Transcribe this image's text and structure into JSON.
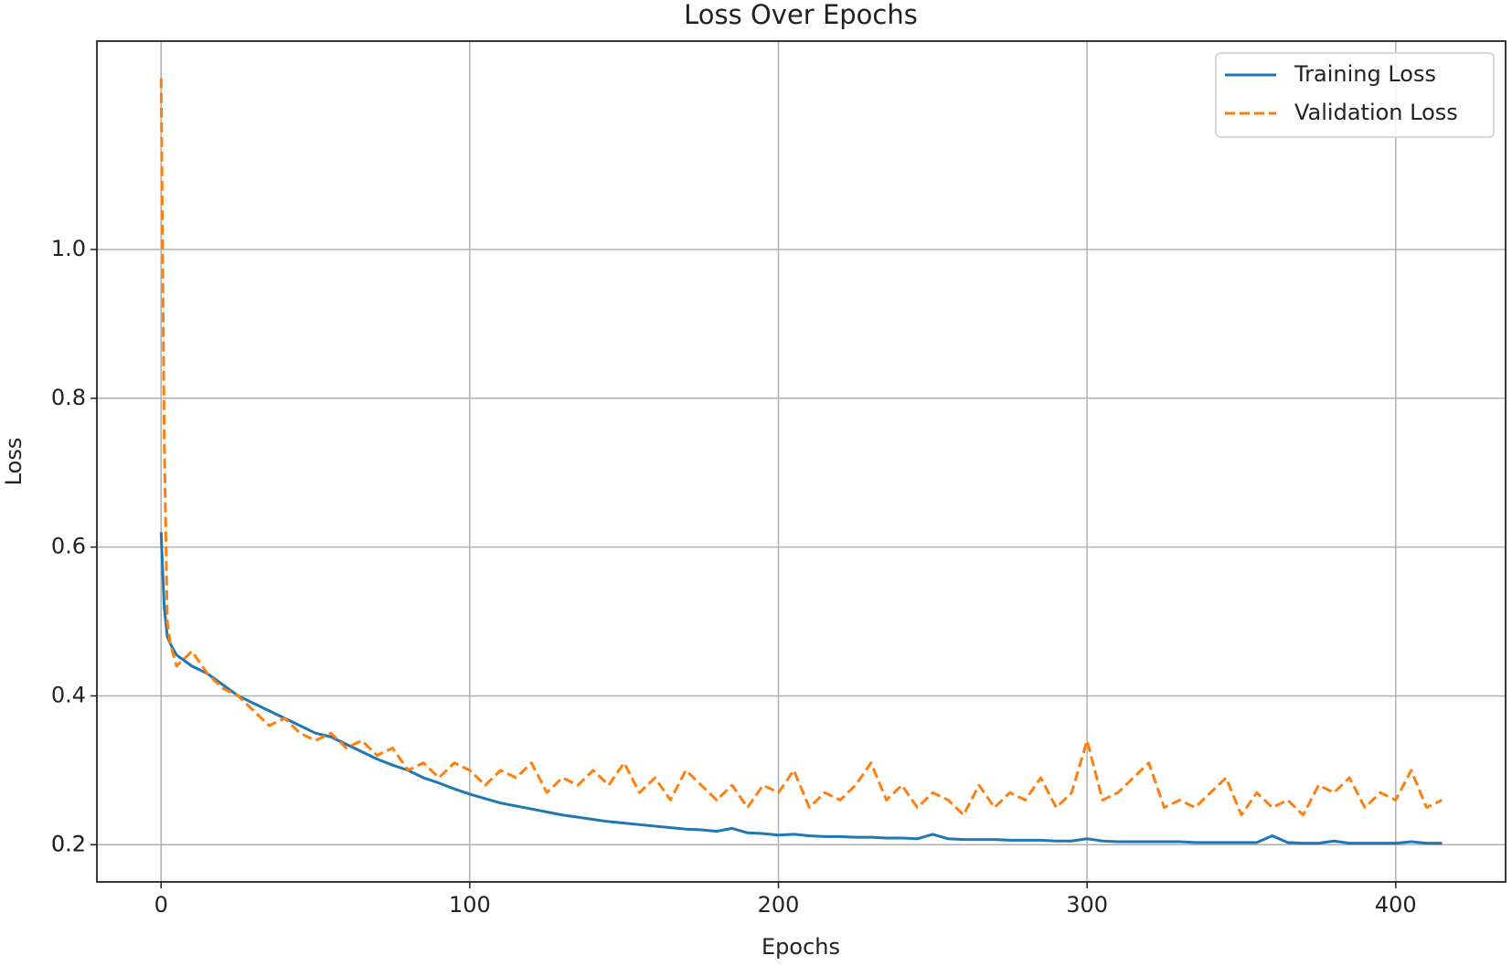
{
  "chart_data": {
    "type": "line",
    "title": "Loss Over Epochs",
    "x_label": "Epochs",
    "y_label": "Loss",
    "x": [
      0,
      1,
      2,
      3,
      5,
      10,
      15,
      20,
      25,
      30,
      35,
      40,
      45,
      50,
      55,
      60,
      65,
      70,
      75,
      80,
      85,
      90,
      95,
      100,
      105,
      110,
      115,
      120,
      125,
      130,
      135,
      140,
      145,
      150,
      155,
      160,
      165,
      170,
      175,
      180,
      185,
      190,
      195,
      200,
      205,
      210,
      215,
      220,
      225,
      230,
      235,
      240,
      245,
      250,
      255,
      260,
      265,
      270,
      275,
      280,
      285,
      290,
      295,
      300,
      305,
      310,
      315,
      320,
      325,
      330,
      335,
      340,
      345,
      350,
      355,
      360,
      365,
      370,
      375,
      380,
      385,
      390,
      395,
      400,
      405,
      410,
      415
    ],
    "series": [
      {
        "name": "Training Loss",
        "color": "#1f77b4",
        "dash": "solid",
        "values": [
          0.62,
          0.52,
          0.48,
          0.47,
          0.455,
          0.44,
          0.43,
          0.415,
          0.4,
          0.39,
          0.38,
          0.37,
          0.36,
          0.35,
          0.345,
          0.335,
          0.325,
          0.315,
          0.307,
          0.3,
          0.29,
          0.283,
          0.275,
          0.268,
          0.262,
          0.256,
          0.252,
          0.248,
          0.244,
          0.24,
          0.237,
          0.234,
          0.231,
          0.229,
          0.227,
          0.225,
          0.223,
          0.221,
          0.22,
          0.218,
          0.222,
          0.216,
          0.215,
          0.213,
          0.214,
          0.212,
          0.211,
          0.211,
          0.21,
          0.21,
          0.209,
          0.209,
          0.208,
          0.214,
          0.208,
          0.207,
          0.207,
          0.207,
          0.206,
          0.206,
          0.206,
          0.205,
          0.205,
          0.208,
          0.205,
          0.204,
          0.204,
          0.204,
          0.204,
          0.204,
          0.203,
          0.203,
          0.203,
          0.203,
          0.203,
          0.212,
          0.203,
          0.202,
          0.202,
          0.205,
          0.202,
          0.202,
          0.202,
          0.202,
          0.204,
          0.202,
          0.202
        ]
      },
      {
        "name": "Validation Loss",
        "color": "#ff7f0e",
        "dash": "dashed",
        "values": [
          1.23,
          0.75,
          0.5,
          0.47,
          0.44,
          0.46,
          0.43,
          0.41,
          0.4,
          0.38,
          0.36,
          0.37,
          0.35,
          0.34,
          0.35,
          0.33,
          0.34,
          0.32,
          0.33,
          0.3,
          0.31,
          0.29,
          0.31,
          0.3,
          0.28,
          0.3,
          0.29,
          0.31,
          0.27,
          0.29,
          0.28,
          0.3,
          0.28,
          0.31,
          0.27,
          0.29,
          0.26,
          0.3,
          0.28,
          0.26,
          0.28,
          0.25,
          0.28,
          0.27,
          0.3,
          0.25,
          0.27,
          0.26,
          0.28,
          0.31,
          0.26,
          0.28,
          0.25,
          0.27,
          0.26,
          0.24,
          0.28,
          0.25,
          0.27,
          0.26,
          0.29,
          0.25,
          0.27,
          0.34,
          0.26,
          0.27,
          0.29,
          0.31,
          0.25,
          0.26,
          0.25,
          0.27,
          0.29,
          0.24,
          0.27,
          0.25,
          0.26,
          0.24,
          0.28,
          0.27,
          0.29,
          0.25,
          0.27,
          0.26,
          0.3,
          0.25,
          0.26
        ]
      }
    ],
    "xlim": [
      -20.8,
      435.6
    ],
    "ylim": [
      0.15,
      1.28
    ],
    "xticks": [
      0,
      100,
      200,
      300,
      400
    ],
    "yticks": [
      0.2,
      0.4,
      0.6,
      0.8,
      {
        "value": 1,
        "label": "1.0"
      },
      0.2
    ],
    "grid": true,
    "legend": "upper right"
  }
}
